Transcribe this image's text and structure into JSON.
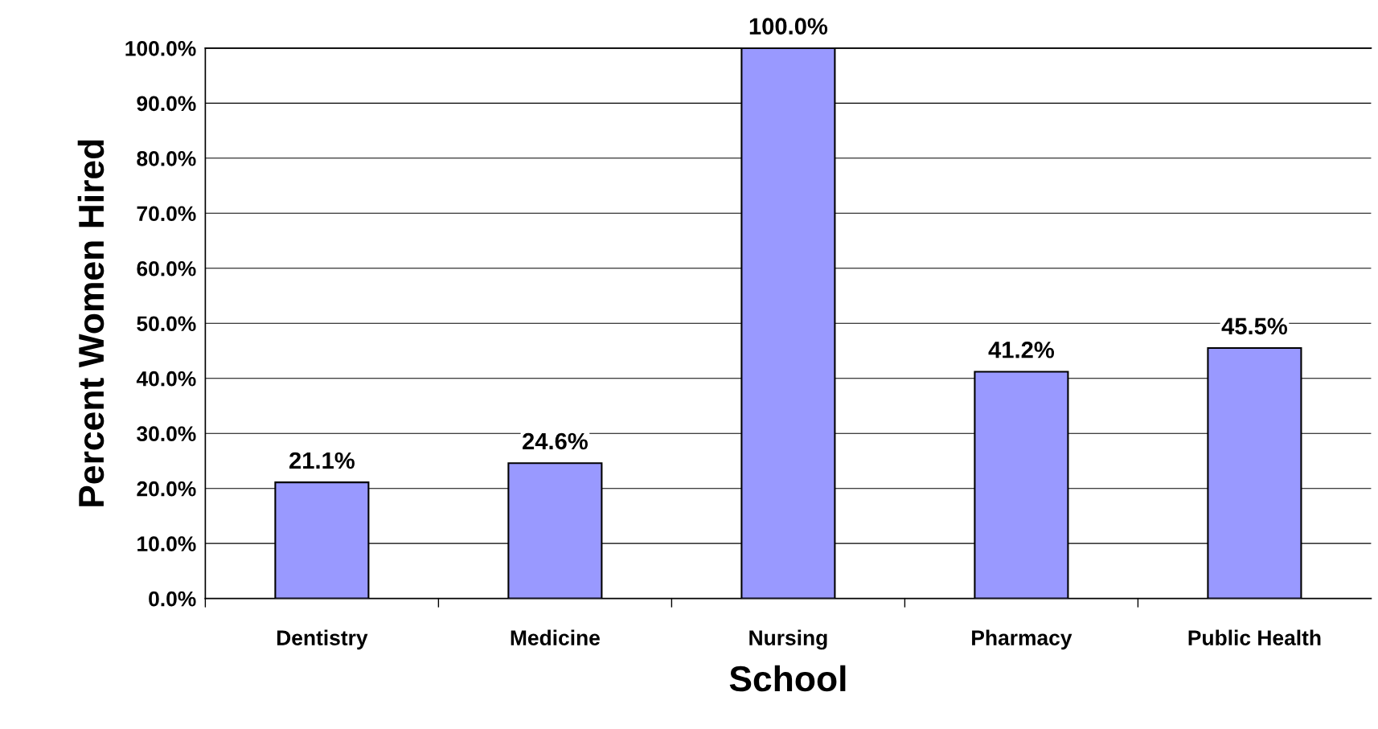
{
  "chart_data": {
    "type": "bar",
    "xlabel": "School",
    "ylabel": "Percent Women Hired",
    "categories": [
      "Dentistry",
      "Medicine",
      "Nursing",
      "Pharmacy",
      "Public Health"
    ],
    "values": [
      21.1,
      24.6,
      100.0,
      41.2,
      45.5
    ],
    "value_labels": [
      "21.1%",
      "24.6%",
      "100.0%",
      "41.2%",
      "45.5%"
    ],
    "color": "#9999ff",
    "ylim": [
      0,
      100
    ],
    "yticks": [
      {
        "value": 0,
        "label": "0.0%"
      },
      {
        "value": 10,
        "label": "10.0%"
      },
      {
        "value": 20,
        "label": "20.0%"
      },
      {
        "value": 30,
        "label": "30.0%"
      },
      {
        "value": 40,
        "label": "40.0%"
      },
      {
        "value": 50,
        "label": "50.0%"
      },
      {
        "value": 60,
        "label": "60.0%"
      },
      {
        "value": 70,
        "label": "70.0%"
      },
      {
        "value": 80,
        "label": "80.0%"
      },
      {
        "value": 90,
        "label": "90.0%"
      },
      {
        "value": 100,
        "label": "100.0%"
      }
    ],
    "grid": "y",
    "legend": false
  }
}
